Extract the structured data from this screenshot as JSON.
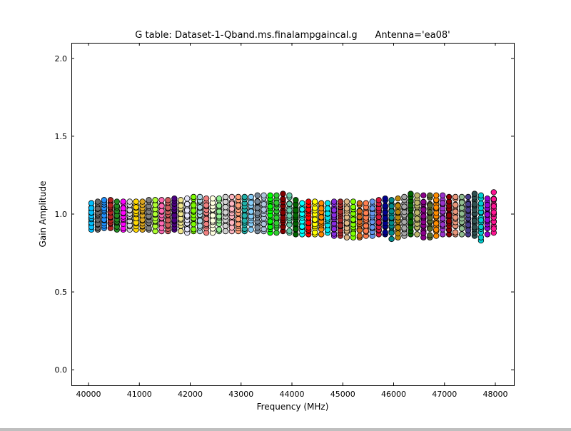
{
  "chart_data": {
    "type": "scatter",
    "title": "G table: Dataset-1-Qband.ms.finalampgaincal.g      Antenna='ea08'",
    "xlabel": "Frequency (MHz)",
    "ylabel": "Gain Amplitude",
    "xlim": [
      39663,
      48365
    ],
    "ylim": [
      -0.1,
      2.1
    ],
    "xticks": [
      "40000",
      "41000",
      "42000",
      "43000",
      "44000",
      "45000",
      "46000",
      "47000",
      "48000"
    ],
    "yticks": [
      "0.0",
      "0.5",
      "1.0",
      "1.5",
      "2.0"
    ],
    "grid": false,
    "marker": "circle",
    "marker_edge_color": "#000000",
    "columns_note_free": true,
    "series": [
      {
        "x": 40056,
        "ymin": 0.9,
        "ymax": 1.07,
        "color": "#00bfff"
      },
      {
        "x": 40182,
        "ymin": 0.9,
        "ymax": 1.08,
        "color": "#696969"
      },
      {
        "x": 40307,
        "ymin": 0.91,
        "ymax": 1.09,
        "color": "#1e90ff"
      },
      {
        "x": 40433,
        "ymin": 0.91,
        "ymax": 1.09,
        "color": "#b22222"
      },
      {
        "x": 40558,
        "ymin": 0.9,
        "ymax": 1.08,
        "color": "#228b22"
      },
      {
        "x": 40684,
        "ymin": 0.9,
        "ymax": 1.08,
        "color": "#ff00ff"
      },
      {
        "x": 40810,
        "ymin": 0.9,
        "ymax": 1.08,
        "color": "#dcdcdc"
      },
      {
        "x": 40935,
        "ymin": 0.9,
        "ymax": 1.08,
        "color": "#ffd700"
      },
      {
        "x": 41061,
        "ymin": 0.9,
        "ymax": 1.08,
        "color": "#daa520"
      },
      {
        "x": 41186,
        "ymin": 0.9,
        "ymax": 1.09,
        "color": "#808080"
      },
      {
        "x": 41312,
        "ymin": 0.89,
        "ymax": 1.09,
        "color": "#adff2f"
      },
      {
        "x": 41438,
        "ymin": 0.89,
        "ymax": 1.09,
        "color": "#ff69b4"
      },
      {
        "x": 41563,
        "ymin": 0.89,
        "ymax": 1.09,
        "color": "#cd5c5c"
      },
      {
        "x": 41689,
        "ymin": 0.9,
        "ymax": 1.1,
        "color": "#4b0082"
      },
      {
        "x": 41814,
        "ymin": 0.89,
        "ymax": 1.09,
        "color": "#f0e68c"
      },
      {
        "x": 41940,
        "ymin": 0.88,
        "ymax": 1.1,
        "color": "#e6e6fa"
      },
      {
        "x": 42066,
        "ymin": 0.89,
        "ymax": 1.11,
        "color": "#7cfc00"
      },
      {
        "x": 42191,
        "ymin": 0.89,
        "ymax": 1.11,
        "color": "#add8e6"
      },
      {
        "x": 42317,
        "ymin": 0.88,
        "ymax": 1.1,
        "color": "#f08080"
      },
      {
        "x": 42442,
        "ymin": 0.88,
        "ymax": 1.1,
        "color": "#ffffe0"
      },
      {
        "x": 42568,
        "ymin": 0.89,
        "ymax": 1.1,
        "color": "#90ee90"
      },
      {
        "x": 42694,
        "ymin": 0.89,
        "ymax": 1.11,
        "color": "#d3d3d3"
      },
      {
        "x": 42819,
        "ymin": 0.89,
        "ymax": 1.11,
        "color": "#ffb6c1"
      },
      {
        "x": 42945,
        "ymin": 0.89,
        "ymax": 1.11,
        "color": "#ffa07a"
      },
      {
        "x": 43070,
        "ymin": 0.89,
        "ymax": 1.11,
        "color": "#20b2aa"
      },
      {
        "x": 43196,
        "ymin": 0.9,
        "ymax": 1.11,
        "color": "#87cefa"
      },
      {
        "x": 43322,
        "ymin": 0.89,
        "ymax": 1.12,
        "color": "#778899"
      },
      {
        "x": 43447,
        "ymin": 0.89,
        "ymax": 1.12,
        "color": "#b0c4de"
      },
      {
        "x": 43573,
        "ymin": 0.88,
        "ymax": 1.12,
        "color": "#00ff00"
      },
      {
        "x": 43698,
        "ymin": 0.88,
        "ymax": 1.12,
        "color": "#32cd32"
      },
      {
        "x": 43824,
        "ymin": 0.89,
        "ymax": 1.13,
        "color": "#800000"
      },
      {
        "x": 43950,
        "ymin": 0.88,
        "ymax": 1.12,
        "color": "#66cdaa"
      },
      {
        "x": 44075,
        "ymin": 0.87,
        "ymax": 1.09,
        "color": "#006400"
      },
      {
        "x": 44201,
        "ymin": 0.87,
        "ymax": 1.07,
        "color": "#00ffff"
      },
      {
        "x": 44326,
        "ymin": 0.87,
        "ymax": 1.08,
        "color": "#ff0000"
      },
      {
        "x": 44452,
        "ymin": 0.87,
        "ymax": 1.08,
        "color": "#ffff00"
      },
      {
        "x": 44578,
        "ymin": 0.87,
        "ymax": 1.07,
        "color": "#ff8c00"
      },
      {
        "x": 44703,
        "ymin": 0.88,
        "ymax": 1.07,
        "color": "#00e5ee"
      },
      {
        "x": 44829,
        "ymin": 0.86,
        "ymax": 1.08,
        "color": "#8a2be2"
      },
      {
        "x": 44954,
        "ymin": 0.86,
        "ymax": 1.08,
        "color": "#a52a2a"
      },
      {
        "x": 45080,
        "ymin": 0.85,
        "ymax": 1.08,
        "color": "#deb887"
      },
      {
        "x": 45206,
        "ymin": 0.85,
        "ymax": 1.08,
        "color": "#7fff00"
      },
      {
        "x": 45331,
        "ymin": 0.85,
        "ymax": 1.07,
        "color": "#d2691e"
      },
      {
        "x": 45457,
        "ymin": 0.86,
        "ymax": 1.07,
        "color": "#ff7f50"
      },
      {
        "x": 45582,
        "ymin": 0.86,
        "ymax": 1.08,
        "color": "#6495ed"
      },
      {
        "x": 45708,
        "ymin": 0.87,
        "ymax": 1.09,
        "color": "#dc143c"
      },
      {
        "x": 45834,
        "ymin": 0.87,
        "ymax": 1.1,
        "color": "#00008b"
      },
      {
        "x": 45959,
        "ymin": 0.84,
        "ymax": 1.09,
        "color": "#008b8b"
      },
      {
        "x": 46085,
        "ymin": 0.85,
        "ymax": 1.1,
        "color": "#b8860b"
      },
      {
        "x": 46210,
        "ymin": 0.86,
        "ymax": 1.11,
        "color": "#a9a9a9"
      },
      {
        "x": 46336,
        "ymin": 0.87,
        "ymax": 1.13,
        "color": "#006400"
      },
      {
        "x": 46462,
        "ymin": 0.87,
        "ymax": 1.12,
        "color": "#bdb76b"
      },
      {
        "x": 46587,
        "ymin": 0.85,
        "ymax": 1.12,
        "color": "#8b008b"
      },
      {
        "x": 46713,
        "ymin": 0.85,
        "ymax": 1.12,
        "color": "#556b2f"
      },
      {
        "x": 46838,
        "ymin": 0.86,
        "ymax": 1.12,
        "color": "#ff8c00"
      },
      {
        "x": 46964,
        "ymin": 0.87,
        "ymax": 1.12,
        "color": "#9932cc"
      },
      {
        "x": 47090,
        "ymin": 0.87,
        "ymax": 1.11,
        "color": "#8b0000"
      },
      {
        "x": 47215,
        "ymin": 0.87,
        "ymax": 1.11,
        "color": "#e9967a"
      },
      {
        "x": 47341,
        "ymin": 0.87,
        "ymax": 1.11,
        "color": "#8fbc8f"
      },
      {
        "x": 47466,
        "ymin": 0.87,
        "ymax": 1.11,
        "color": "#483d8b"
      },
      {
        "x": 47592,
        "ymin": 0.86,
        "ymax": 1.13,
        "color": "#2f4f4f"
      },
      {
        "x": 47718,
        "ymin": 0.83,
        "ymax": 1.12,
        "color": "#00ced1"
      },
      {
        "x": 47843,
        "ymin": 0.87,
        "ymax": 1.1,
        "color": "#9400d3"
      },
      {
        "x": 47969,
        "ymin": 0.88,
        "ymax": 1.14,
        "color": "#ff1493"
      }
    ]
  }
}
